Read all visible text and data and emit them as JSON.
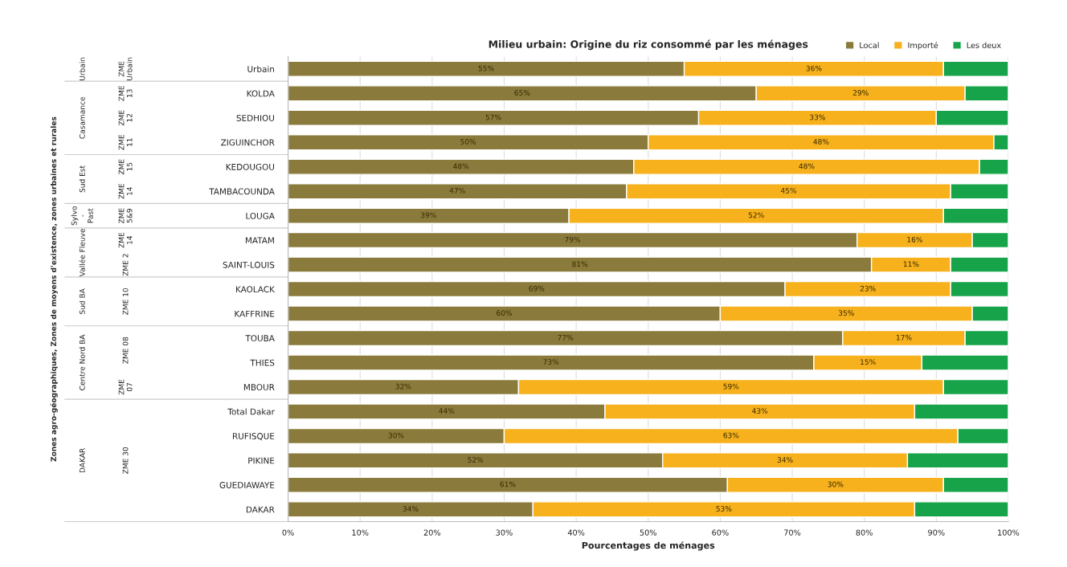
{
  "chart_data": {
    "type": "bar",
    "orientation": "horizontal",
    "stacked": true,
    "title": "Milieu urbain: Origine du riz consommé par les ménages",
    "xlabel": "Pourcentages de ménages",
    "categories": [
      "Urbain",
      "KOLDA",
      "SEDHIOU",
      "ZIGUINCHOR",
      "KEDOUGOU",
      "TAMBACOUNDA",
      "LOUGA",
      "MATAM",
      "SAINT-LOUIS",
      "KAOLACK",
      "KAFFRINE",
      "TOUBA",
      "THIES",
      "MBOUR",
      "Total Dakar",
      "RUFISQUE",
      "PIKINE",
      "GUEDIAWAYE",
      "DAKAR"
    ],
    "series": [
      {
        "name": "Local",
        "color": "#8a7b3c",
        "values": [
          55,
          65,
          57,
          50,
          48,
          47,
          39,
          79,
          81,
          69,
          60,
          77,
          73,
          32,
          44,
          30,
          52,
          61,
          34
        ],
        "value_labels": [
          "55%",
          "65%",
          "57%",
          "50%",
          "48%",
          "47%",
          "39%",
          "79%",
          "81%",
          "69%",
          "60%",
          "77%",
          "73%",
          "32%",
          "44%",
          "30%",
          "52%",
          "61%",
          "34%"
        ]
      },
      {
        "name": "Importé",
        "color": "#f6b11c",
        "values": [
          36,
          29,
          33,
          48,
          48,
          45,
          52,
          16,
          11,
          23,
          35,
          17,
          15,
          59,
          43,
          63,
          34,
          30,
          53
        ],
        "value_labels": [
          "36%",
          "29%",
          "33%",
          "48%",
          "48%",
          "45%",
          "52%",
          "16%",
          "11%",
          "23%",
          "35%",
          "17%",
          "15%",
          "59%",
          "43%",
          "63%",
          "34%",
          "30%",
          "53%"
        ]
      },
      {
        "name": "Les deux",
        "color": "#16a34a",
        "values": [
          9,
          6,
          10,
          2,
          4,
          8,
          9,
          5,
          8,
          8,
          5,
          6,
          12,
          9,
          13,
          7,
          14,
          9,
          13
        ]
      }
    ],
    "xlim": [
      0,
      100
    ],
    "xticks": [
      {
        "value": 0,
        "label": "0%"
      },
      {
        "value": 10,
        "label": "10%"
      },
      {
        "value": 20,
        "label": "20%"
      },
      {
        "value": 30,
        "label": "30%"
      },
      {
        "value": 40,
        "label": "40%"
      },
      {
        "value": 50,
        "label": "50%"
      },
      {
        "value": 60,
        "label": "60%"
      },
      {
        "value": 70,
        "label": "70%"
      },
      {
        "value": 80,
        "label": "80%"
      },
      {
        "value": 90,
        "label": "90%"
      },
      {
        "value": 100,
        "label": "100%"
      }
    ],
    "grid": "x",
    "legend": "top right",
    "annotations": [
      "Urbain",
      "Casamance",
      "Sud Est",
      "Sylvo - Past",
      "Vallée Fleuve",
      "Sud BA",
      "Centre Nord BA",
      "DAKAR",
      "ZME Urbain",
      "ZME 13",
      "ZME 12",
      "ZME 11",
      "ZME 15",
      "ZME 14",
      "ZME 5&9",
      "ZME 14",
      "ZME 2",
      "ZME 10",
      "ZME 08",
      "ZME 07",
      "ZME 30",
      "Zones agro-géographiques, Zones de moyens d'existence, zones urbaines et rurales"
    ]
  }
}
